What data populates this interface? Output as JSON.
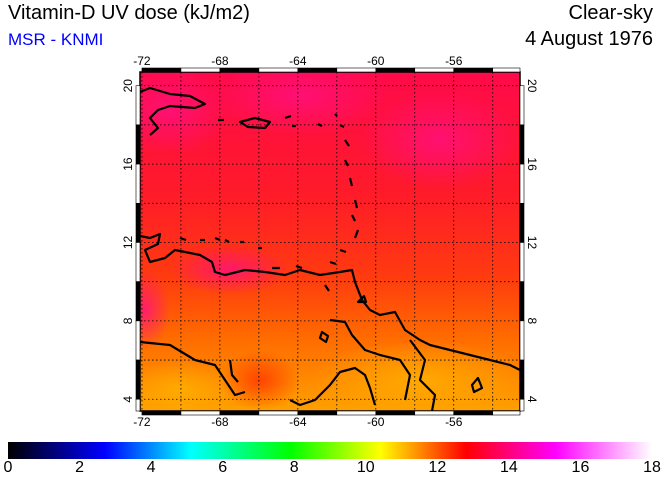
{
  "header": {
    "title": "Vitamin-D UV dose (kJ/m2)",
    "source": "MSR - KNMI",
    "sky": "Clear-sky",
    "date": "4 August 1976"
  },
  "map": {
    "lon_range": [
      -72.1,
      -52.6
    ],
    "lat_range": [
      3.4,
      20.7
    ],
    "lon_ticks": [
      "-72",
      "-68",
      "-64",
      "-60",
      "-56"
    ],
    "lat_ticks": [
      "4",
      "8",
      "12",
      "16",
      "20"
    ],
    "field_range_kJm2": [
      11,
      14.5
    ]
  },
  "colorbar": {
    "min": 0,
    "max": 18,
    "labels": [
      "0",
      "2",
      "4",
      "6",
      "8",
      "10",
      "12",
      "14",
      "16",
      "18"
    ],
    "stops": [
      {
        "v": 0,
        "c": "#000000"
      },
      {
        "v": 2.7,
        "c": "#0000ff"
      },
      {
        "v": 5.1,
        "c": "#00ffff"
      },
      {
        "v": 7.9,
        "c": "#00ff00"
      },
      {
        "v": 10.4,
        "c": "#ffff00"
      },
      {
        "v": 12.8,
        "c": "#ff0000"
      },
      {
        "v": 15.3,
        "c": "#ff00ff"
      },
      {
        "v": 18,
        "c": "#ffffff"
      }
    ]
  }
}
